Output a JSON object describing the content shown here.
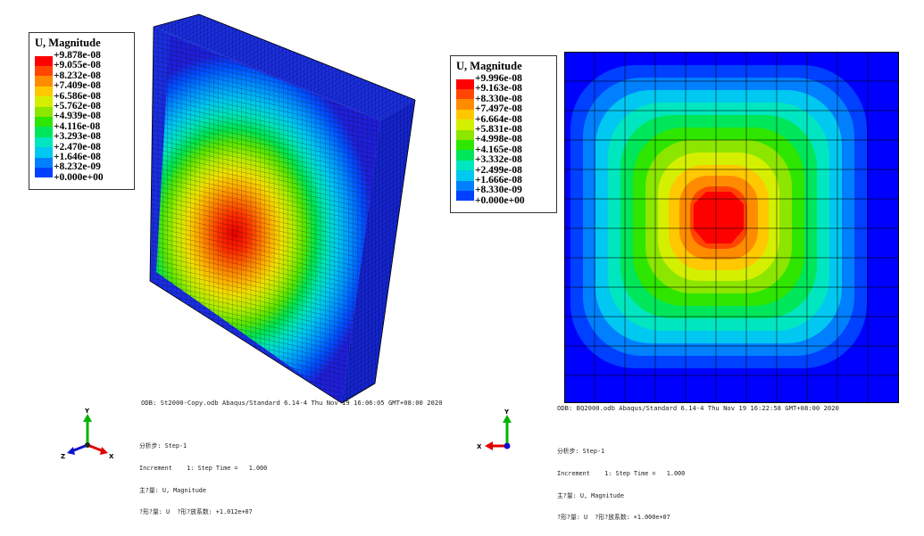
{
  "left": {
    "legend": {
      "title": "U, Magnitude",
      "entries": [
        {
          "label": "+9.878e-08",
          "color": "#ff0000"
        },
        {
          "label": "+9.055e-08",
          "color": "#ff4500"
        },
        {
          "label": "+8.232e-08",
          "color": "#ff8c00"
        },
        {
          "label": "+7.409e-08",
          "color": "#ffc800"
        },
        {
          "label": "+6.586e-08",
          "color": "#d4f000"
        },
        {
          "label": "+5.762e-08",
          "color": "#8ce600"
        },
        {
          "label": "+4.939e-08",
          "color": "#2ee600"
        },
        {
          "label": "+4.116e-08",
          "color": "#00e65a"
        },
        {
          "label": "+3.293e-08",
          "color": "#00e6c0"
        },
        {
          "label": "+2.470e-08",
          "color": "#00c8f0"
        },
        {
          "label": "+1.646e-08",
          "color": "#0080ff"
        },
        {
          "label": "+8.232e-09",
          "color": "#0040ff"
        },
        {
          "label": "+0.000e+00",
          "color": "#0000ff"
        }
      ]
    },
    "odb_line": "ODB: St2000-Copy.odb   Abaqus/Standard 6.14-4   Thu Nov 19 16:06:05 GMT+08:00 2020",
    "step_info": [
      "分析步: Step-1",
      "Increment    1: Step Time =   1.000",
      "主?量: U, Magnitude",
      "?形?量: U  ?形?放系数: +1.012e+07"
    ],
    "triad": {
      "y": "Y",
      "z": "Z",
      "x": "X"
    }
  },
  "right": {
    "legend": {
      "title": "U, Magnitude",
      "entries": [
        {
          "label": "+9.996e-08",
          "color": "#ff0000"
        },
        {
          "label": "+9.163e-08",
          "color": "#ff4500"
        },
        {
          "label": "+8.330e-08",
          "color": "#ff8c00"
        },
        {
          "label": "+7.497e-08",
          "color": "#ffc800"
        },
        {
          "label": "+6.664e-08",
          "color": "#d4f000"
        },
        {
          "label": "+5.831e-08",
          "color": "#8ce600"
        },
        {
          "label": "+4.998e-08",
          "color": "#2ee600"
        },
        {
          "label": "+4.165e-08",
          "color": "#00e65a"
        },
        {
          "label": "+3.332e-08",
          "color": "#00e6c0"
        },
        {
          "label": "+2.499e-08",
          "color": "#00c8f0"
        },
        {
          "label": "+1.666e-08",
          "color": "#0080ff"
        },
        {
          "label": "+8.330e-09",
          "color": "#0040ff"
        },
        {
          "label": "+0.000e+00",
          "color": "#0000ff"
        }
      ]
    },
    "odb_line": "ODB: BQ2000.odb   Abaqus/Standard 6.14-4   Thu Nov 19 16:22:58 GMT+08:00 2020",
    "step_info": [
      "分析步: Step-1",
      "Increment    1: Step Time =   1.000",
      "主?量: U, Magnitude",
      "?形?量: U  ?形?放系数: +1.000e+07"
    ],
    "triad": {
      "y": "Y",
      "x": "X"
    }
  }
}
